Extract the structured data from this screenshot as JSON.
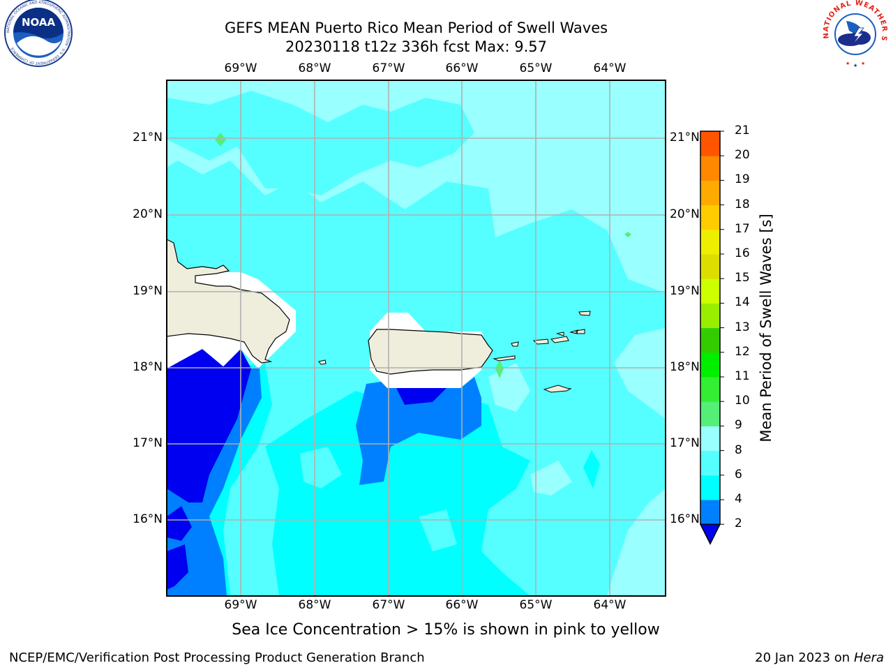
{
  "header": {
    "title_line1": "GEFS MEAN Puerto Rico Mean Period of Swell Waves",
    "title_line2": "20230118 t12z 336h fcst   Max: 9.57"
  },
  "map": {
    "lon_labels": [
      "69°W",
      "68°W",
      "67°W",
      "66°W",
      "65°W",
      "64°W"
    ],
    "lat_labels": [
      "21°N",
      "20°N",
      "19°N",
      "18°N",
      "17°N",
      "16°N"
    ],
    "ocean_colors": {
      "band_2_4": "#0080ff",
      "band_below_2": "#0000f0",
      "band_4_6": "#00ffff",
      "band_6_8": "#55ffff",
      "band_8_9": "#99ffff",
      "band_9_10": "#55ee77",
      "land": "#efeedd"
    }
  },
  "colorbar": {
    "label": "Mean Period of Swell Waves [s]",
    "ticks": [
      "2",
      "4",
      "6",
      "8",
      "9",
      "10",
      "11",
      "12",
      "13",
      "14",
      "15",
      "16",
      "17",
      "18",
      "19",
      "20",
      "21"
    ],
    "colors": [
      "#0080ff",
      "#00ffff",
      "#55ffff",
      "#99ffff",
      "#55ee77",
      "#33ee33",
      "#00ee00",
      "#33cc00",
      "#99ee00",
      "#ccff00",
      "#dddd00",
      "#eeee00",
      "#ffcc00",
      "#ffaa00",
      "#ff8800",
      "#ff5500",
      "#ff2200",
      "#ff0000"
    ],
    "under_color": "#0000f0"
  },
  "note": "Sea Ice Concentration > 15% is shown in pink to yellow",
  "footer": {
    "left": "NCEP/EMC/Verification Post Processing Product Generation Branch",
    "right_prefix": "20 Jan 2023 on ",
    "right_host": "Hera"
  },
  "logos": {
    "noaa_text": "NOAA",
    "noaa_ring_text": "NATIONAL OCEANIC AND ATMOSPHERIC ADMINISTRATION · U.S. DEPARTMENT OF COMMERCE",
    "nws_ring_text": "NATIONAL WEATHER SERVICE"
  }
}
